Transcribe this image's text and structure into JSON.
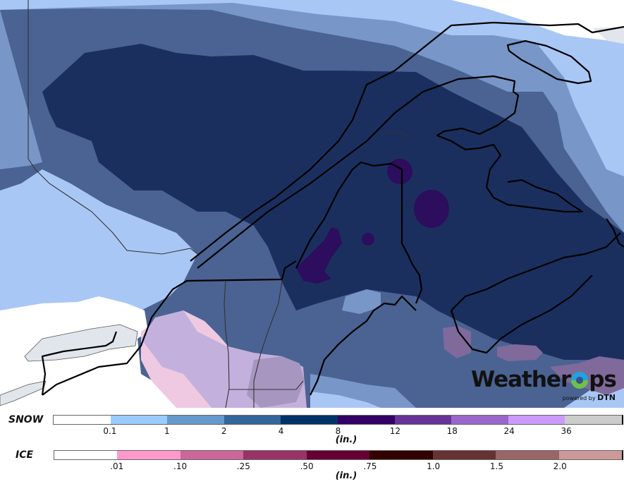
{
  "map": {
    "region": "Northeastern US and Eastern Canada",
    "colors": {
      "none": "#ffffff",
      "snow_0_1_to_1": "#a9c7f5",
      "snow_1_to_2": "#7896c8",
      "snow_2_to_4": "#4a6393",
      "snow_4_to_8": "#1b2f5f",
      "snow_8_to_12": "#2d0d5e",
      "ice_low_overlay": "#efc9e1",
      "ice_mix_overlay": "#c4b0dc",
      "ice_dense_overlay": "#7f6a9b",
      "land_gray": "#e1e5ec"
    }
  },
  "logo": {
    "brand_prefix": "Weather",
    "brand_suffix": "ps",
    "powered_by": "powered by",
    "partner": "DTN"
  },
  "legend": {
    "snow": {
      "label": "SNOW",
      "units": "(in.)",
      "colors": [
        "#ffffff",
        "#99ccff",
        "#6699cc",
        "#336699",
        "#003366",
        "#330066",
        "#663399",
        "#9966cc",
        "#cc99ff",
        "#cccccc"
      ],
      "ticks": [
        "0.1",
        "1",
        "2",
        "4",
        "8",
        "12",
        "18",
        "24",
        "36"
      ]
    },
    "ice": {
      "label": "ICE",
      "units": "(in.)",
      "colors": [
        "#ffffff",
        "#ff99cc",
        "#cc6699",
        "#993366",
        "#660033",
        "#330000",
        "#663333",
        "#996666",
        "#cc9999"
      ],
      "ticks": [
        ".01",
        ".10",
        ".25",
        ".50",
        ".75",
        "1.0",
        "1.5",
        "2.0"
      ]
    }
  }
}
